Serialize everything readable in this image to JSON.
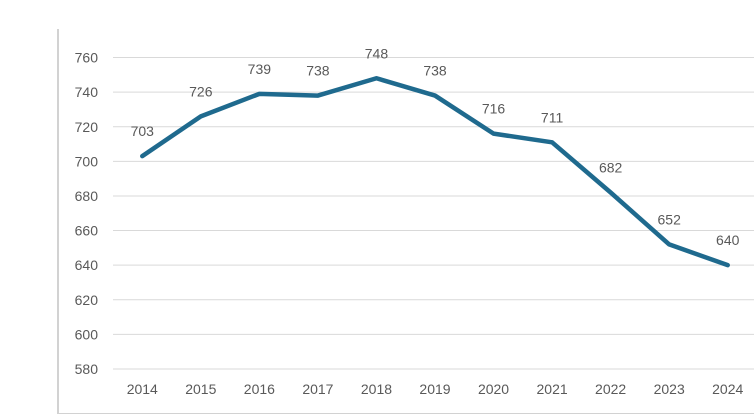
{
  "chart_data": {
    "type": "line",
    "categories": [
      "2014",
      "2015",
      "2016",
      "2017",
      "2018",
      "2019",
      "2020",
      "2021",
      "2022",
      "2023",
      "2024"
    ],
    "values": [
      703,
      726,
      739,
      738,
      748,
      738,
      716,
      711,
      682,
      652,
      640
    ],
    "data_labels": [
      "703",
      "726",
      "739",
      "738",
      "748",
      "738",
      "716",
      "711",
      "682",
      "652",
      "640"
    ],
    "y_tick_labels": [
      "580",
      "600",
      "620",
      "640",
      "660",
      "680",
      "700",
      "720",
      "740",
      "760"
    ],
    "title": "",
    "xlabel": "",
    "ylabel": "",
    "ylim": [
      580,
      760
    ],
    "ytick_step": 20,
    "grid": true,
    "legend": false,
    "colors": {
      "line": "#1F6A8E",
      "grid": "#D9D9D9",
      "frame": "#D2D2D2",
      "axis_text": "#595959",
      "data_label_text": "#595959",
      "background": "#FFFFFF"
    }
  }
}
